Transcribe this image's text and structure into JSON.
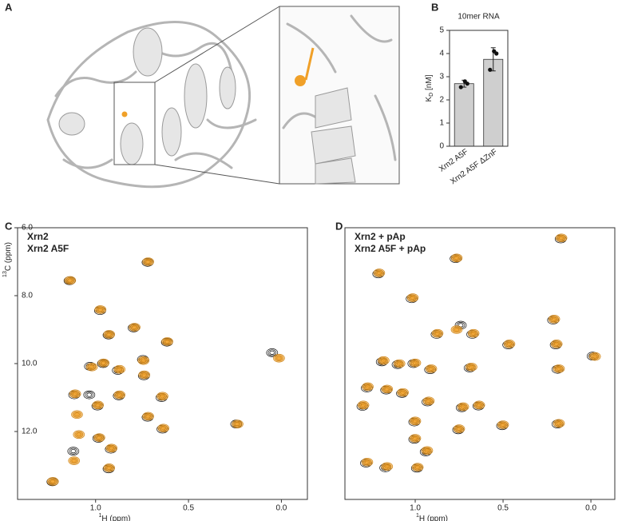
{
  "panel_labels": [
    "A",
    "B",
    "C",
    "D"
  ],
  "chart_data": [
    {
      "type": "bar",
      "title": "10mer RNA",
      "categories": [
        "Xrn2 A5F",
        "Xrn2 A5F ΔZnF"
      ],
      "values": [
        2.7,
        3.75
      ],
      "errors": [
        0.15,
        0.5
      ],
      "points": [
        [
          2.55,
          2.7,
          2.8
        ],
        [
          3.3,
          4.0,
          4.1
        ]
      ],
      "color": "#cfcfcf",
      "ylabel": [
        "K",
        "D",
        " [nM]"
      ],
      "ylim": [
        0,
        5
      ],
      "yticks": [
        0,
        1,
        2,
        3,
        4,
        5
      ]
    },
    {
      "type": "scatter",
      "xlabel": [
        "1",
        "H (ppm)"
      ],
      "ylabel": [
        "13",
        "C (ppm)"
      ],
      "xlim": [
        1.42,
        -0.14
      ],
      "ylim": [
        6.0,
        14.0
      ],
      "y_inverted": true,
      "xticks": [
        {
          "value": 1.0,
          "label": "1.0"
        },
        {
          "value": 0.5,
          "label": "0.5"
        },
        {
          "value": 0.0,
          "label": "0.0"
        }
      ],
      "yticks": [
        {
          "value": 6.0,
          "label": "6.0"
        },
        {
          "value": 8.0,
          "label": "8.0"
        },
        {
          "value": 10.0,
          "label": "10.0"
        },
        {
          "value": 12.0,
          "label": "12.0"
        }
      ],
      "series": [
        {
          "name": "Xrn2",
          "color": "#111111",
          "x": [
            1.14,
            0.72,
            0.976,
            0.93,
            0.795,
            0.616,
            0.05,
            1.03,
            0.96,
            0.88,
            0.745,
            0.74,
            1.115,
            0.875,
            0.645,
            0.99,
            0.72,
            1.034,
            0.243,
            0.64,
            1.12,
            0.985,
            0.918,
            0.93,
            1.232
          ],
          "y": [
            7.56,
            7.02,
            8.44,
            9.16,
            8.95,
            9.37,
            9.68,
            10.08,
            10.0,
            10.2,
            9.88,
            10.36,
            10.92,
            10.95,
            11.0,
            11.25,
            11.58,
            10.92,
            11.78,
            11.93,
            12.58,
            12.2,
            12.52,
            13.1,
            13.48
          ]
        },
        {
          "name": "Xrn2 A5F",
          "color": "#f0a028",
          "x": [
            1.137,
            0.717,
            0.974,
            0.927,
            0.79,
            0.614,
            0.013,
            1.02,
            0.957,
            0.871,
            0.742,
            0.738,
            1.11,
            0.871,
            0.64,
            0.987,
            0.717,
            1.1,
            0.236,
            0.635,
            1.09,
            0.98,
            0.914,
            1.116,
            0.927,
            1.23
          ],
          "y": [
            7.55,
            7.0,
            8.41,
            9.14,
            8.93,
            9.35,
            9.84,
            10.1,
            9.98,
            10.17,
            9.91,
            10.33,
            10.89,
            10.92,
            10.96,
            11.22,
            11.55,
            11.5,
            11.78,
            11.9,
            12.09,
            12.18,
            12.49,
            12.86,
            13.07,
            13.47
          ]
        }
      ]
    },
    {
      "type": "scatter",
      "xlabel": [
        "1",
        "H (ppm)"
      ],
      "xlim": [
        1.4,
        -0.136
      ],
      "ylim": [
        6.0,
        14.0
      ],
      "y_inverted": true,
      "xticks": [
        {
          "value": 1.0,
          "label": "1.0"
        },
        {
          "value": 0.5,
          "label": "0.5"
        },
        {
          "value": 0.0,
          "label": "0.0"
        }
      ],
      "series": [
        {
          "name": "Xrn2 + pAp",
          "color": "#111111",
          "x": [
            0.172,
            1.21,
            0.77,
            1.02,
            0.215,
            0.878,
            0.741,
            0.675,
            0.47,
            0.2,
            -0.01,
            1.19,
            1.1,
            1.01,
            0.915,
            0.69,
            0.19,
            1.275,
            1.165,
            1.075,
            0.93,
            0.735,
            0.64,
            1.3,
            1.005,
            0.19,
            0.505,
            0.755,
            1.005,
            0.94,
            1.28,
            1.17,
            0.99
          ],
          "y": [
            6.33,
            7.36,
            6.91,
            8.09,
            8.72,
            9.14,
            8.87,
            9.14,
            9.45,
            9.45,
            9.78,
            9.95,
            10.03,
            10.0,
            10.18,
            10.13,
            10.17,
            10.72,
            10.78,
            10.88,
            11.13,
            11.3,
            11.25,
            11.26,
            11.72,
            11.78,
            11.83,
            11.95,
            12.23,
            12.6,
            12.93,
            13.07,
            13.08
          ]
        },
        {
          "name": "Xrn2 A5F + pAp",
          "color": "#f0a028",
          "x": [
            0.168,
            1.205,
            0.764,
            1.014,
            0.209,
            0.873,
            0.764,
            0.668,
            0.464,
            0.195,
            -0.023,
            1.18,
            1.09,
            1.0,
            0.909,
            0.68,
            0.182,
            1.27,
            1.16,
            1.07,
            0.923,
            0.727,
            0.636,
            1.295,
            1.0,
            0.182,
            0.5,
            0.75,
            1.0,
            0.932,
            1.273,
            1.16,
            0.986
          ],
          "y": [
            6.3,
            7.33,
            6.89,
            8.06,
            8.69,
            9.11,
            9.0,
            9.11,
            9.42,
            9.42,
            9.79,
            9.91,
            10.0,
            9.98,
            10.15,
            10.1,
            10.15,
            10.68,
            10.75,
            10.85,
            11.1,
            11.27,
            11.22,
            11.22,
            11.69,
            11.76,
            11.8,
            11.92,
            12.2,
            12.56,
            12.9,
            13.03,
            13.05
          ]
        }
      ]
    }
  ]
}
